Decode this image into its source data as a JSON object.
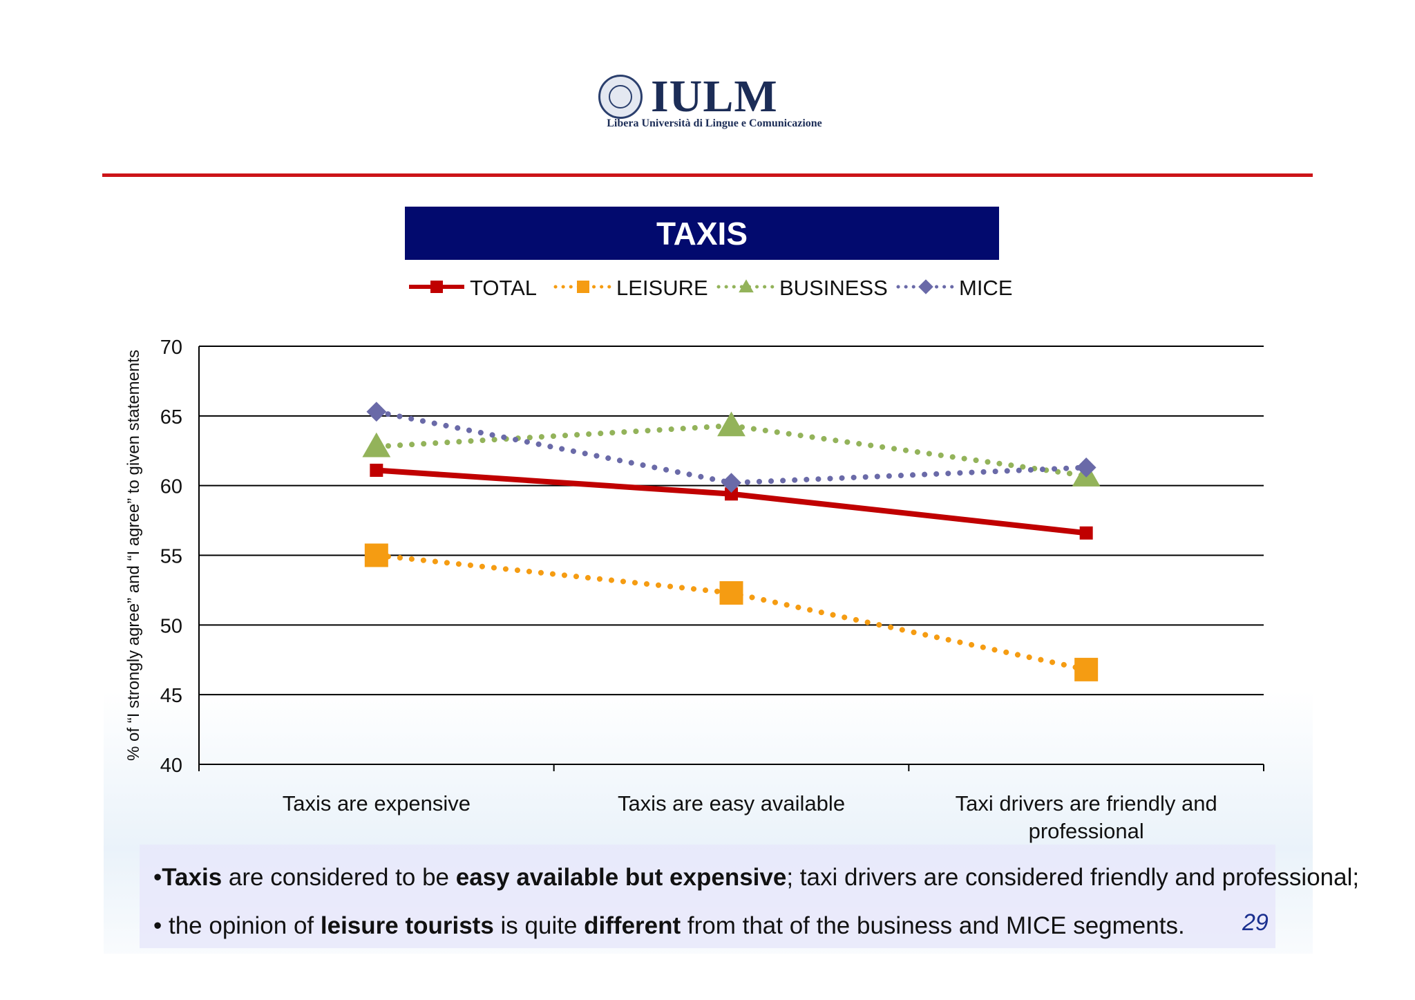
{
  "logo": {
    "name": "IULM",
    "subtitle": "Libera Università di Lingue e Comunicazione"
  },
  "slide": {
    "title": "TAXIS",
    "page_number": "29",
    "bullets": [
      {
        "segments": [
          {
            "text": "•",
            "bold": false
          },
          {
            "text": "Taxis",
            "bold": true
          },
          {
            "text": " are considered to be ",
            "bold": false
          },
          {
            "text": "easy available but expensive",
            "bold": true
          },
          {
            "text": "; taxi drivers are considered friendly and professional;",
            "bold": false
          }
        ]
      },
      {
        "segments": [
          {
            "text": "• the opinion of ",
            "bold": false
          },
          {
            "text": "leisure tourists",
            "bold": true
          },
          {
            "text": " is quite ",
            "bold": false
          },
          {
            "text": "different",
            "bold": true
          },
          {
            "text": " from that of the business and MICE segments.",
            "bold": false
          }
        ]
      }
    ]
  },
  "chart_data": {
    "type": "line",
    "title": "TAXIS",
    "ylabel": "% of “I strongly agree” and “I agree” to given statements",
    "xlabel": "",
    "ylim": [
      40,
      70
    ],
    "yticks": [
      "40",
      "45",
      "50",
      "55",
      "60",
      "65",
      "70"
    ],
    "grid": true,
    "legend_position": "top",
    "categories": [
      "Taxis are expensive",
      "Taxis are easy available",
      "Taxi drivers are friendly and professional"
    ],
    "category_lines": [
      [
        "Taxis are expensive"
      ],
      [
        "Taxis are easy available"
      ],
      [
        "Taxi drivers are friendly and",
        "professional"
      ]
    ],
    "series": [
      {
        "name": "TOTAL",
        "values": [
          61.1,
          59.4,
          56.6
        ],
        "color": "#c00000",
        "line": "solid",
        "marker": "square"
      },
      {
        "name": "LEISURE",
        "values": [
          55.0,
          52.3,
          46.8
        ],
        "color": "#f59c12",
        "line": "dotted",
        "marker": "square"
      },
      {
        "name": "BUSINESS",
        "values": [
          62.8,
          64.3,
          60.7
        ],
        "color": "#93b35a",
        "line": "dotted",
        "marker": "triangle"
      },
      {
        "name": "MICE",
        "values": [
          65.3,
          60.2,
          61.3
        ],
        "color": "#6a6aa8",
        "line": "dotted",
        "marker": "diamond"
      }
    ]
  }
}
